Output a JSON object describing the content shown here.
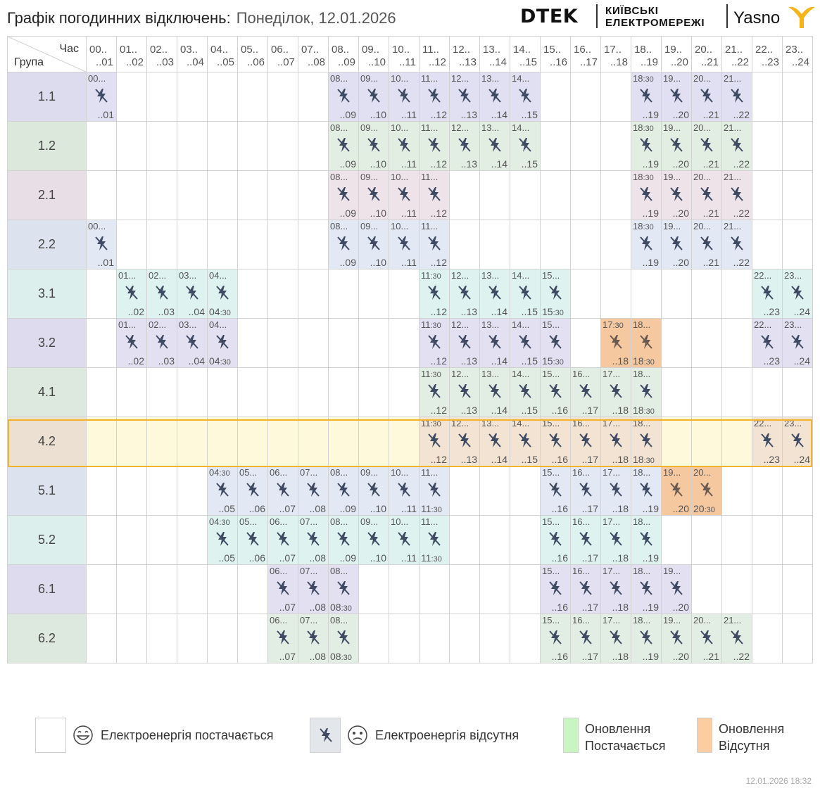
{
  "header": {
    "title": "Графік погодинних відключень:",
    "date": "Понеділок, 12.01.2026",
    "brand_dtek": "DTEK",
    "brand_kyiv_line1": "КИЇВСЬКІ",
    "brand_kyiv_line2": "ЕЛЕКТРОМЕРЕЖІ",
    "brand_yasno": "Yasno"
  },
  "table": {
    "corner_top": "Час",
    "corner_bottom": "Група",
    "hours": [
      {
        "top": "00..",
        "bottom": "..01"
      },
      {
        "top": "01..",
        "bottom": "..02"
      },
      {
        "top": "02..",
        "bottom": "..03"
      },
      {
        "top": "03..",
        "bottom": "..04"
      },
      {
        "top": "04..",
        "bottom": "..05"
      },
      {
        "top": "05..",
        "bottom": "..06"
      },
      {
        "top": "06..",
        "bottom": "..07"
      },
      {
        "top": "07..",
        "bottom": "..08"
      },
      {
        "top": "08..",
        "bottom": "..09"
      },
      {
        "top": "09..",
        "bottom": "..10"
      },
      {
        "top": "10..",
        "bottom": "..11"
      },
      {
        "top": "11..",
        "bottom": "..12"
      },
      {
        "top": "12..",
        "bottom": "..13"
      },
      {
        "top": "13..",
        "bottom": "..14"
      },
      {
        "top": "14..",
        "bottom": "..15"
      },
      {
        "top": "15..",
        "bottom": "..16"
      },
      {
        "top": "16..",
        "bottom": "..17"
      },
      {
        "top": "17..",
        "bottom": "..18"
      },
      {
        "top": "18..",
        "bottom": "..19"
      },
      {
        "top": "19..",
        "bottom": "..20"
      },
      {
        "top": "20..",
        "bottom": "..21"
      },
      {
        "top": "21..",
        "bottom": "..22"
      },
      {
        "top": "22..",
        "bottom": "..23"
      },
      {
        "top": "23..",
        "bottom": "..24"
      }
    ],
    "groups": [
      {
        "name": "1.1",
        "color": "#e0e0f2",
        "name_bg": "#dcdcee",
        "cells": [
          {
            "h": 0,
            "s": "00...",
            "e": "..01"
          },
          {
            "h": 8,
            "s": "08...",
            "e": "..09"
          },
          {
            "h": 9,
            "s": "09...",
            "e": "..10"
          },
          {
            "h": 10,
            "s": "10...",
            "e": "..11"
          },
          {
            "h": 11,
            "s": "11...",
            "e": "..12"
          },
          {
            "h": 12,
            "s": "12...",
            "e": "..13"
          },
          {
            "h": 13,
            "s": "13...",
            "e": "..14"
          },
          {
            "h": 14,
            "s": "14...",
            "e": "..15"
          },
          {
            "h": 18,
            "s": "18:30",
            "e": "..19"
          },
          {
            "h": 19,
            "s": "19...",
            "e": "..20"
          },
          {
            "h": 20,
            "s": "20...",
            "e": "..21"
          },
          {
            "h": 21,
            "s": "21...",
            "e": "..22"
          }
        ]
      },
      {
        "name": "1.2",
        "color": "#e3eee3",
        "name_bg": "#dde8dd",
        "cells": [
          {
            "h": 8,
            "s": "08...",
            "e": "..09"
          },
          {
            "h": 9,
            "s": "09...",
            "e": "..10"
          },
          {
            "h": 10,
            "s": "10...",
            "e": "..11"
          },
          {
            "h": 11,
            "s": "11...",
            "e": "..12"
          },
          {
            "h": 12,
            "s": "12...",
            "e": "..13"
          },
          {
            "h": 13,
            "s": "13...",
            "e": "..14"
          },
          {
            "h": 14,
            "s": "14...",
            "e": "..15"
          },
          {
            "h": 18,
            "s": "18:30",
            "e": "..19"
          },
          {
            "h": 19,
            "s": "19...",
            "e": "..20"
          },
          {
            "h": 20,
            "s": "20...",
            "e": "..21"
          },
          {
            "h": 21,
            "s": "21...",
            "e": "..22"
          }
        ]
      },
      {
        "name": "2.1",
        "color": "#efe3ea",
        "name_bg": "#e8dee6",
        "cells": [
          {
            "h": 8,
            "s": "08...",
            "e": "..09"
          },
          {
            "h": 9,
            "s": "09...",
            "e": "..10"
          },
          {
            "h": 10,
            "s": "10...",
            "e": "..11"
          },
          {
            "h": 11,
            "s": "11...",
            "e": "..12"
          },
          {
            "h": 18,
            "s": "18:30",
            "e": "..19"
          },
          {
            "h": 19,
            "s": "19...",
            "e": "..20"
          },
          {
            "h": 20,
            "s": "20...",
            "e": "..21"
          },
          {
            "h": 21,
            "s": "21...",
            "e": "..22"
          }
        ]
      },
      {
        "name": "2.2",
        "color": "#e2e8f4",
        "name_bg": "#dde3ee",
        "cells": [
          {
            "h": 0,
            "s": "00...",
            "e": "..01"
          },
          {
            "h": 8,
            "s": "08...",
            "e": "..09"
          },
          {
            "h": 9,
            "s": "09...",
            "e": "..10"
          },
          {
            "h": 10,
            "s": "10...",
            "e": "..11"
          },
          {
            "h": 11,
            "s": "11...",
            "e": "..12"
          },
          {
            "h": 18,
            "s": "18:30",
            "e": "..19"
          },
          {
            "h": 19,
            "s": "19...",
            "e": "..20"
          },
          {
            "h": 20,
            "s": "20...",
            "e": "..21"
          },
          {
            "h": 21,
            "s": "21...",
            "e": "..22"
          }
        ]
      },
      {
        "name": "3.1",
        "color": "#def3f0",
        "name_bg": "#dcefec",
        "cells": [
          {
            "h": 1,
            "s": "01...",
            "e": "..02"
          },
          {
            "h": 2,
            "s": "02...",
            "e": "..03"
          },
          {
            "h": 3,
            "s": "03...",
            "e": "..04"
          },
          {
            "h": 4,
            "s": "04...",
            "e": "04:30",
            "el": true
          },
          {
            "h": 11,
            "s": "11:30",
            "e": "..12"
          },
          {
            "h": 12,
            "s": "12...",
            "e": "..13"
          },
          {
            "h": 13,
            "s": "13...",
            "e": "..14"
          },
          {
            "h": 14,
            "s": "14...",
            "e": "..15"
          },
          {
            "h": 15,
            "s": "15...",
            "e": "15:30",
            "el": true
          },
          {
            "h": 22,
            "s": "22...",
            "e": "..23"
          },
          {
            "h": 23,
            "s": "23...",
            "e": "..24"
          }
        ]
      },
      {
        "name": "3.2",
        "color": "#e3e0f2",
        "name_bg": "#dedbee",
        "cells": [
          {
            "h": 1,
            "s": "01...",
            "e": "..02"
          },
          {
            "h": 2,
            "s": "02...",
            "e": "..03"
          },
          {
            "h": 3,
            "s": "03...",
            "e": "..04"
          },
          {
            "h": 4,
            "s": "04...",
            "e": "04:30",
            "el": true
          },
          {
            "h": 11,
            "s": "11:30",
            "e": "..12"
          },
          {
            "h": 12,
            "s": "12...",
            "e": "..13"
          },
          {
            "h": 13,
            "s": "13...",
            "e": "..14"
          },
          {
            "h": 14,
            "s": "14...",
            "e": "..15"
          },
          {
            "h": 15,
            "s": "15...",
            "e": "15:30",
            "el": true
          },
          {
            "h": 17,
            "s": "17:30",
            "e": "..18",
            "u": true
          },
          {
            "h": 18,
            "s": "18...",
            "e": "18:30",
            "el": true,
            "u": true
          },
          {
            "h": 22,
            "s": "22...",
            "e": "..23"
          },
          {
            "h": 23,
            "s": "23...",
            "e": "..24"
          }
        ]
      },
      {
        "name": "4.1",
        "color": "#e2eee4",
        "name_bg": "#dde8de",
        "cells": [
          {
            "h": 11,
            "s": "11:30",
            "e": "..12"
          },
          {
            "h": 12,
            "s": "12...",
            "e": "..13"
          },
          {
            "h": 13,
            "s": "13...",
            "e": "..14"
          },
          {
            "h": 14,
            "s": "14...",
            "e": "..15"
          },
          {
            "h": 15,
            "s": "15...",
            "e": "..16"
          },
          {
            "h": 16,
            "s": "16...",
            "e": "..17"
          },
          {
            "h": 17,
            "s": "17...",
            "e": "..18"
          },
          {
            "h": 18,
            "s": "18...",
            "e": "18:30",
            "el": true
          }
        ]
      },
      {
        "name": "4.2",
        "color": "#f2e3d2",
        "name_bg": "#ece0d2",
        "row_bg": "#fff9dc",
        "cells": [
          {
            "h": 11,
            "s": "11:30",
            "e": "..12"
          },
          {
            "h": 12,
            "s": "12...",
            "e": "..13"
          },
          {
            "h": 13,
            "s": "13...",
            "e": "..14"
          },
          {
            "h": 14,
            "s": "14...",
            "e": "..15"
          },
          {
            "h": 15,
            "s": "15...",
            "e": "..16"
          },
          {
            "h": 16,
            "s": "16...",
            "e": "..17"
          },
          {
            "h": 17,
            "s": "17...",
            "e": "..18"
          },
          {
            "h": 18,
            "s": "18...",
            "e": "18:30",
            "el": true
          },
          {
            "h": 22,
            "s": "22...",
            "e": "..23"
          },
          {
            "h": 23,
            "s": "23...",
            "e": "..24"
          }
        ]
      },
      {
        "name": "5.1",
        "color": "#e2e8f4",
        "name_bg": "#dde3ee",
        "cells": [
          {
            "h": 4,
            "s": "04:30",
            "e": "..05"
          },
          {
            "h": 5,
            "s": "05...",
            "e": "..06"
          },
          {
            "h": 6,
            "s": "06...",
            "e": "..07"
          },
          {
            "h": 7,
            "s": "07...",
            "e": "..08"
          },
          {
            "h": 8,
            "s": "08...",
            "e": "..09"
          },
          {
            "h": 9,
            "s": "09...",
            "e": "..10"
          },
          {
            "h": 10,
            "s": "10...",
            "e": "..11"
          },
          {
            "h": 11,
            "s": "11...",
            "e": "11:30",
            "el": true
          },
          {
            "h": 15,
            "s": "15...",
            "e": "..16"
          },
          {
            "h": 16,
            "s": "16...",
            "e": "..17"
          },
          {
            "h": 17,
            "s": "17...",
            "e": "..18"
          },
          {
            "h": 18,
            "s": "18...",
            "e": "..19"
          },
          {
            "h": 19,
            "s": "19...",
            "e": "..20",
            "u": true
          },
          {
            "h": 20,
            "s": "20...",
            "e": "20:30",
            "el": true,
            "u": true
          }
        ]
      },
      {
        "name": "5.2",
        "color": "#def3f0",
        "name_bg": "#dcefec",
        "cells": [
          {
            "h": 4,
            "s": "04:30",
            "e": "..05"
          },
          {
            "h": 5,
            "s": "05...",
            "e": "..06"
          },
          {
            "h": 6,
            "s": "06...",
            "e": "..07"
          },
          {
            "h": 7,
            "s": "07...",
            "e": "..08"
          },
          {
            "h": 8,
            "s": "08...",
            "e": "..09"
          },
          {
            "h": 9,
            "s": "09...",
            "e": "..10"
          },
          {
            "h": 10,
            "s": "10...",
            "e": "..11"
          },
          {
            "h": 11,
            "s": "11...",
            "e": "11:30",
            "el": true
          },
          {
            "h": 15,
            "s": "15...",
            "e": "..16"
          },
          {
            "h": 16,
            "s": "16...",
            "e": "..17"
          },
          {
            "h": 17,
            "s": "17...",
            "e": "..18"
          },
          {
            "h": 18,
            "s": "18...",
            "e": "..19"
          }
        ]
      },
      {
        "name": "6.1",
        "color": "#e3e0f2",
        "name_bg": "#dedbee",
        "cells": [
          {
            "h": 6,
            "s": "06...",
            "e": "..07"
          },
          {
            "h": 7,
            "s": "07...",
            "e": "..08"
          },
          {
            "h": 8,
            "s": "08...",
            "e": "08:30",
            "el": true
          },
          {
            "h": 15,
            "s": "15...",
            "e": "..16"
          },
          {
            "h": 16,
            "s": "16...",
            "e": "..17"
          },
          {
            "h": 17,
            "s": "17...",
            "e": "..18"
          },
          {
            "h": 18,
            "s": "18...",
            "e": "..19"
          },
          {
            "h": 19,
            "s": "19...",
            "e": "..20"
          }
        ]
      },
      {
        "name": "6.2",
        "color": "#e2eee4",
        "name_bg": "#dde8de",
        "cells": [
          {
            "h": 6,
            "s": "06...",
            "e": "..07"
          },
          {
            "h": 7,
            "s": "07...",
            "e": "..08"
          },
          {
            "h": 8,
            "s": "08...",
            "e": "08:30",
            "el": true
          },
          {
            "h": 15,
            "s": "15...",
            "e": "..16"
          },
          {
            "h": 16,
            "s": "16...",
            "e": "..17"
          },
          {
            "h": 17,
            "s": "17...",
            "e": "..18"
          },
          {
            "h": 18,
            "s": "18...",
            "e": "..19"
          },
          {
            "h": 19,
            "s": "19...",
            "e": "..20"
          },
          {
            "h": 20,
            "s": "20...",
            "e": "..21"
          },
          {
            "h": 21,
            "s": "21...",
            "e": "..22"
          }
        ]
      }
    ],
    "update_color": "#f5c8a0",
    "icon_color": "#3f4a63"
  },
  "legend": {
    "power_on": "Електроенергія постачається",
    "power_off": "Електроенергія відсутня",
    "update_on_line1": "Оновлення",
    "update_on_line2": "Постачається",
    "update_off_line1": "Оновлення",
    "update_off_line2": "Відсутня",
    "update_on_color": "#c8f5c0",
    "update_off_color": "#fbcda0",
    "off_box_color": "#e3e7ec"
  },
  "footer": {
    "timestamp": "12.01.2026   18:32"
  }
}
